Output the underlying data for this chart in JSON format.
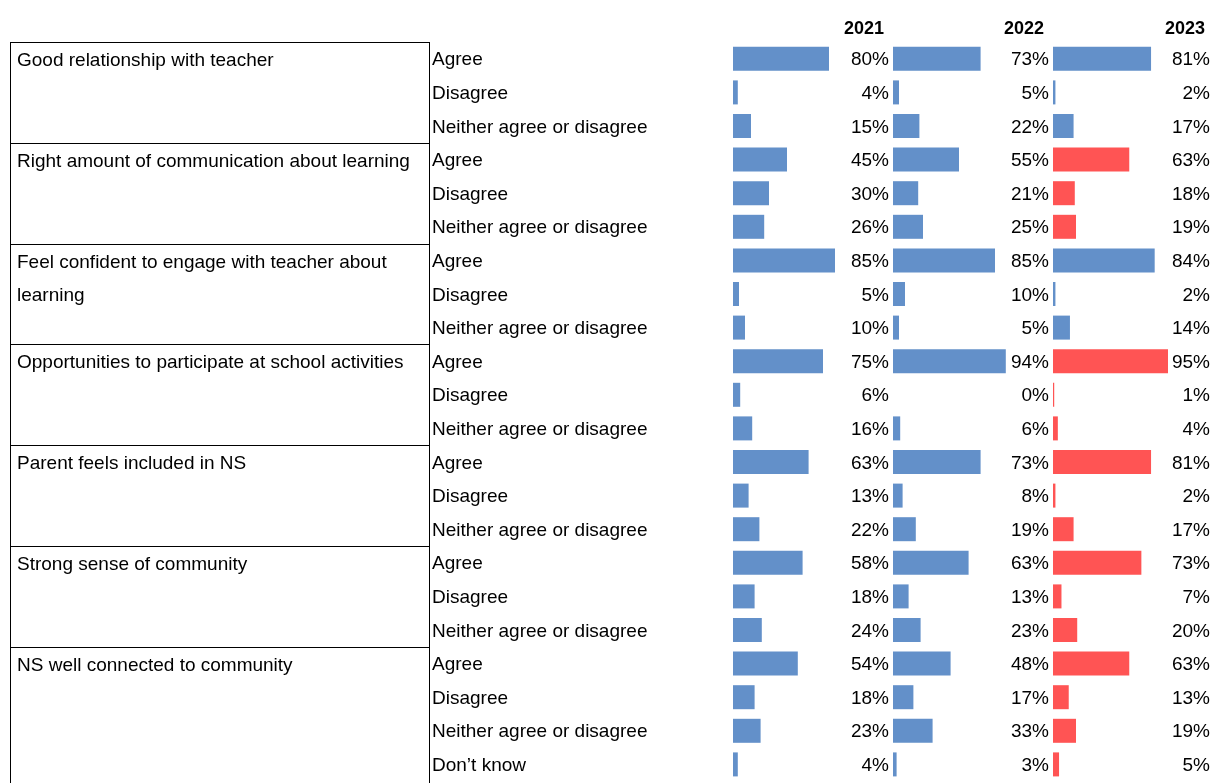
{
  "chart_data": [
    {
      "type": "other",
      "annotations": [
        "Good relationship with teacher",
        "Right amount of communication about learning",
        "Feel confident to engage with teacher about learning",
        "Opportunities to participate at school activities",
        "Parent feels included in NS",
        "Strong sense of community",
        "NS well connected to community"
      ]
    },
    {
      "type": "bar",
      "orientation": "horizontal",
      "title": "2021",
      "tick_labels": "y",
      "color": "#6390c9",
      "categories": [
        "Agree",
        "Disagree",
        "Neither agree or disagree",
        "Agree",
        "Disagree",
        "Neither agree or disagree",
        "Agree",
        "Disagree",
        "Neither agree or disagree",
        "Agree",
        "Disagree",
        "Neither agree or disagree",
        "Agree",
        "Disagree",
        "Neither agree or disagree",
        "Agree",
        "Disagree",
        "Neither agree or disagree",
        "Agree",
        "Disagree",
        "Neither agree or disagree",
        "Don’t know"
      ],
      "values": [
        80,
        4,
        15,
        45,
        30,
        26,
        85,
        5,
        10,
        75,
        6,
        16,
        63,
        13,
        22,
        58,
        18,
        24,
        54,
        18,
        23,
        4
      ],
      "value_labels": [
        "80%",
        "4%",
        "15%",
        "45%",
        "30%",
        "26%",
        "85%",
        "5%",
        "10%",
        "75%",
        "6%",
        "16%",
        "63%",
        "13%",
        "22%",
        "58%",
        "18%",
        "24%",
        "54%",
        "18%",
        "23%",
        "4%"
      ]
    },
    {
      "type": "bar",
      "orientation": "horizontal",
      "title": "2022",
      "tick_labels": false,
      "color": "#6390c9",
      "values": [
        73,
        5,
        22,
        55,
        21,
        25,
        85,
        10,
        5,
        94,
        0,
        6,
        73,
        8,
        19,
        63,
        13,
        23,
        48,
        17,
        33,
        3
      ],
      "value_labels": [
        "73%",
        "5%",
        "22%",
        "55%",
        "21%",
        "25%",
        "85%",
        "10%",
        "5%",
        "94%",
        "0%",
        "6%",
        "73%",
        "8%",
        "19%",
        "63%",
        "13%",
        "23%",
        "48%",
        "17%",
        "33%",
        "3%"
      ]
    },
    {
      "type": "bar",
      "orientation": "horizontal",
      "title": "2023",
      "tick_labels": false,
      "values": [
        81,
        2,
        17,
        63,
        18,
        19,
        84,
        2,
        14,
        95,
        1,
        4,
        81,
        2,
        17,
        73,
        7,
        20,
        63,
        13,
        19,
        5
      ],
      "colors": [
        "#6390c9",
        "#6390c9",
        "#6390c9",
        "#ff5454",
        "#ff5454",
        "#ff5454",
        "#6390c9",
        "#6390c9",
        "#6390c9",
        "#ff5454",
        "#ff5454",
        "#ff5454",
        "#ff5454",
        "#ff5454",
        "#ff5454",
        "#ff5454",
        "#ff5454",
        "#ff5454",
        "#ff5454",
        "#ff5454",
        "#ff5454",
        "#ff5454"
      ],
      "value_labels": [
        "81%",
        "2%",
        "17%",
        "63%",
        "18%",
        "19%",
        "84%",
        "2%",
        "14%",
        "95%",
        "1%",
        "4%",
        "81%",
        "2%",
        "17%",
        "73%",
        "7%",
        "20%",
        "63%",
        "13%",
        "19%",
        "5%"
      ]
    }
  ]
}
